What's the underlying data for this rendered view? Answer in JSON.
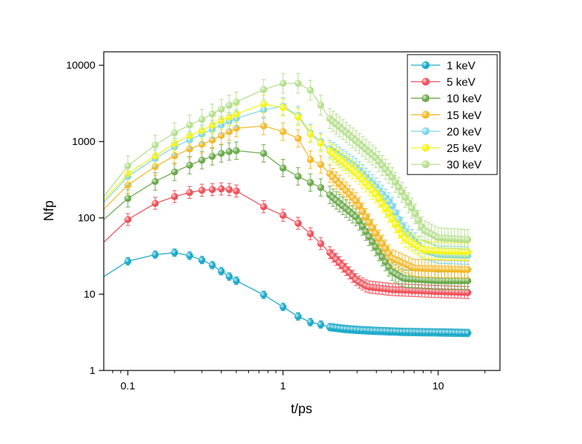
{
  "chart_data": {
    "type": "scatter",
    "title": "",
    "xlabel": "t/ps",
    "ylabel": "Nfp",
    "xscale": "log",
    "yscale": "log",
    "xlim": [
      0.07,
      25
    ],
    "ylim": [
      1,
      15000
    ],
    "x_ticks": [
      {
        "value": 0.1,
        "label": "0.1"
      },
      {
        "value": 1,
        "label": "1"
      },
      {
        "value": 10,
        "label": "10"
      }
    ],
    "y_ticks": [
      {
        "value": 1,
        "label": "1"
      },
      {
        "value": 10,
        "label": "10"
      },
      {
        "value": 100,
        "label": "100"
      },
      {
        "value": 1000,
        "label": "1000"
      },
      {
        "value": 10000,
        "label": "10000"
      }
    ],
    "legend_position": "top-right",
    "series": [
      {
        "name": "1 keV",
        "color": "#19a9c9",
        "line": [
          [
            0.07,
            17
          ],
          [
            0.1,
            27
          ],
          [
            0.15,
            33
          ],
          [
            0.2,
            35
          ],
          [
            0.25,
            32
          ],
          [
            0.3,
            28
          ],
          [
            0.35,
            24
          ],
          [
            0.4,
            20
          ],
          [
            0.45,
            17
          ],
          [
            0.5,
            15
          ],
          [
            0.75,
            9.8
          ],
          [
            1.0,
            6.8
          ],
          [
            1.25,
            5.1
          ],
          [
            1.5,
            4.3
          ],
          [
            1.75,
            4.0
          ],
          [
            2.0,
            3.7
          ],
          [
            2.5,
            3.5
          ],
          [
            3,
            3.4
          ],
          [
            4,
            3.3
          ],
          [
            6,
            3.2
          ],
          [
            10,
            3.15
          ],
          [
            15.5,
            3.1
          ]
        ],
        "points": [
          [
            0.1,
            27
          ],
          [
            0.15,
            33
          ],
          [
            0.2,
            35
          ],
          [
            0.25,
            32
          ],
          [
            0.3,
            28
          ],
          [
            0.35,
            24
          ],
          [
            0.4,
            20
          ],
          [
            0.45,
            17
          ],
          [
            0.5,
            15
          ],
          [
            0.75,
            9.8
          ],
          [
            1.0,
            6.8
          ],
          [
            1.25,
            5.1
          ],
          [
            1.5,
            4.3
          ],
          [
            1.75,
            4.0
          ],
          [
            2.0,
            3.7
          ]
        ],
        "dense_from": 2.0,
        "dense_to": 15.5,
        "rel_err": 0.12
      },
      {
        "name": "5 keV",
        "color": "#f0505a",
        "line": [
          [
            0.07,
            48
          ],
          [
            0.1,
            95
          ],
          [
            0.15,
            155
          ],
          [
            0.2,
            190
          ],
          [
            0.25,
            215
          ],
          [
            0.3,
            230
          ],
          [
            0.35,
            235
          ],
          [
            0.4,
            240
          ],
          [
            0.45,
            235
          ],
          [
            0.5,
            225
          ],
          [
            0.75,
            140
          ],
          [
            1.0,
            108
          ],
          [
            1.25,
            85
          ],
          [
            1.5,
            62
          ],
          [
            1.75,
            46
          ],
          [
            2.0,
            35
          ],
          [
            2.5,
            22
          ],
          [
            3,
            15
          ],
          [
            3.5,
            12.5
          ],
          [
            5,
            11.5
          ],
          [
            10,
            10.8
          ],
          [
            15.5,
            10.5
          ]
        ],
        "points": [
          [
            0.1,
            95
          ],
          [
            0.15,
            155
          ],
          [
            0.2,
            190
          ],
          [
            0.25,
            215
          ],
          [
            0.3,
            230
          ],
          [
            0.35,
            235
          ],
          [
            0.4,
            240
          ],
          [
            0.45,
            235
          ],
          [
            0.5,
            225
          ],
          [
            0.75,
            140
          ],
          [
            1.0,
            108
          ],
          [
            1.25,
            85
          ],
          [
            1.5,
            62
          ],
          [
            1.75,
            46
          ],
          [
            2.0,
            35
          ]
        ],
        "dense_from": 2.0,
        "dense_to": 15.5,
        "rel_err": 0.2
      },
      {
        "name": "10 keV",
        "color": "#6aaa4a",
        "line": [
          [
            0.07,
            95
          ],
          [
            0.1,
            180
          ],
          [
            0.15,
            300
          ],
          [
            0.2,
            400
          ],
          [
            0.25,
            490
          ],
          [
            0.3,
            570
          ],
          [
            0.35,
            640
          ],
          [
            0.4,
            700
          ],
          [
            0.45,
            740
          ],
          [
            0.5,
            760
          ],
          [
            0.75,
            700
          ],
          [
            1.0,
            450
          ],
          [
            1.25,
            350
          ],
          [
            1.5,
            290
          ],
          [
            1.75,
            250
          ],
          [
            2.0,
            200
          ],
          [
            3,
            100
          ],
          [
            4,
            40
          ],
          [
            5,
            20
          ],
          [
            6,
            16
          ],
          [
            10,
            15
          ],
          [
            15.5,
            15
          ]
        ],
        "points": [
          [
            0.1,
            180
          ],
          [
            0.15,
            300
          ],
          [
            0.2,
            400
          ],
          [
            0.25,
            490
          ],
          [
            0.3,
            570
          ],
          [
            0.35,
            640
          ],
          [
            0.4,
            700
          ],
          [
            0.45,
            740
          ],
          [
            0.5,
            760
          ],
          [
            0.75,
            700
          ],
          [
            1.0,
            450
          ],
          [
            1.25,
            350
          ],
          [
            1.5,
            290
          ],
          [
            1.75,
            250
          ],
          [
            2.0,
            200
          ]
        ],
        "dense_from": 2.0,
        "dense_to": 15.5,
        "rel_err": 0.3
      },
      {
        "name": "15 keV",
        "color": "#f2b929",
        "line": [
          [
            0.07,
            130
          ],
          [
            0.1,
            270
          ],
          [
            0.15,
            470
          ],
          [
            0.2,
            650
          ],
          [
            0.25,
            800
          ],
          [
            0.3,
            920
          ],
          [
            0.35,
            1050
          ],
          [
            0.4,
            1200
          ],
          [
            0.45,
            1350
          ],
          [
            0.5,
            1500
          ],
          [
            0.75,
            1600
          ],
          [
            1.0,
            1350
          ],
          [
            1.25,
            1100
          ],
          [
            1.5,
            580
          ],
          [
            1.75,
            500
          ],
          [
            2.0,
            380
          ],
          [
            3,
            160
          ],
          [
            4,
            60
          ],
          [
            5,
            30
          ],
          [
            7,
            22
          ],
          [
            10,
            21.5
          ],
          [
            15.5,
            21
          ]
        ],
        "points": [
          [
            0.1,
            270
          ],
          [
            0.15,
            470
          ],
          [
            0.2,
            650
          ],
          [
            0.25,
            800
          ],
          [
            0.3,
            920
          ],
          [
            0.35,
            1050
          ],
          [
            0.4,
            1200
          ],
          [
            0.45,
            1350
          ],
          [
            0.5,
            1500
          ],
          [
            0.75,
            1600
          ],
          [
            1.0,
            1350
          ],
          [
            1.25,
            1100
          ],
          [
            1.5,
            580
          ],
          [
            1.75,
            500
          ],
          [
            2.0,
            380
          ]
        ],
        "dense_from": 2.0,
        "dense_to": 15.5,
        "rel_err": 0.3
      },
      {
        "name": "20 keV",
        "color": "#7fd7ea",
        "line": [
          [
            0.07,
            160
          ],
          [
            0.1,
            350
          ],
          [
            0.15,
            600
          ],
          [
            0.2,
            850
          ],
          [
            0.25,
            1050
          ],
          [
            0.3,
            1250
          ],
          [
            0.35,
            1450
          ],
          [
            0.4,
            1650
          ],
          [
            0.45,
            1850
          ],
          [
            0.5,
            2000
          ],
          [
            0.75,
            2600
          ],
          [
            1.0,
            2900
          ],
          [
            1.25,
            2200
          ],
          [
            1.5,
            1300
          ],
          [
            1.75,
            1000
          ],
          [
            2.0,
            800
          ],
          [
            3,
            450
          ],
          [
            4,
            250
          ],
          [
            5,
            150
          ],
          [
            6,
            70
          ],
          [
            8,
            38
          ],
          [
            10,
            33
          ],
          [
            15.5,
            32
          ]
        ],
        "points": [
          [
            0.1,
            350
          ],
          [
            0.15,
            600
          ],
          [
            0.2,
            850
          ],
          [
            0.25,
            1050
          ],
          [
            0.3,
            1250
          ],
          [
            0.35,
            1450
          ],
          [
            0.4,
            1650
          ],
          [
            0.45,
            1850
          ],
          [
            0.5,
            2000
          ],
          [
            0.75,
            2600
          ],
          [
            1.0,
            2900
          ],
          [
            1.25,
            2200
          ],
          [
            1.5,
            1300
          ],
          [
            1.75,
            1000
          ],
          [
            2.0,
            800
          ]
        ],
        "dense_from": 2.0,
        "dense_to": 15.5,
        "rel_err": 0.3
      },
      {
        "name": "25 keV",
        "color": "#f5f516",
        "line": [
          [
            0.07,
            170
          ],
          [
            0.1,
            380
          ],
          [
            0.15,
            650
          ],
          [
            0.2,
            950
          ],
          [
            0.25,
            1200
          ],
          [
            0.3,
            1400
          ],
          [
            0.35,
            1650
          ],
          [
            0.4,
            1900
          ],
          [
            0.45,
            2100
          ],
          [
            0.5,
            2300
          ],
          [
            0.75,
            3100
          ],
          [
            1.0,
            2800
          ],
          [
            1.25,
            2100
          ],
          [
            1.5,
            1250
          ],
          [
            1.75,
            950
          ],
          [
            2.0,
            750
          ],
          [
            3,
            380
          ],
          [
            4,
            200
          ],
          [
            5,
            100
          ],
          [
            6,
            55
          ],
          [
            8,
            38
          ],
          [
            10,
            37
          ],
          [
            15.5,
            36
          ]
        ],
        "points": [
          [
            0.1,
            380
          ],
          [
            0.15,
            650
          ],
          [
            0.2,
            950
          ],
          [
            0.25,
            1200
          ],
          [
            0.3,
            1400
          ],
          [
            0.35,
            1650
          ],
          [
            0.4,
            1900
          ],
          [
            0.45,
            2100
          ],
          [
            0.5,
            2300
          ],
          [
            0.75,
            3100
          ],
          [
            1.0,
            2800
          ],
          [
            1.25,
            2100
          ],
          [
            1.5,
            1250
          ],
          [
            1.75,
            950
          ],
          [
            2.0,
            750
          ]
        ],
        "dense_from": 2.0,
        "dense_to": 15.5,
        "rel_err": 0.3
      },
      {
        "name": "30 keV",
        "color": "#b5df8d",
        "line": [
          [
            0.07,
            190
          ],
          [
            0.1,
            480
          ],
          [
            0.15,
            900
          ],
          [
            0.2,
            1300
          ],
          [
            0.25,
            1650
          ],
          [
            0.3,
            1950
          ],
          [
            0.35,
            2300
          ],
          [
            0.4,
            2650
          ],
          [
            0.45,
            3000
          ],
          [
            0.5,
            3300
          ],
          [
            0.75,
            4800
          ],
          [
            1.0,
            5800
          ],
          [
            1.25,
            5800
          ],
          [
            1.5,
            4700
          ],
          [
            1.75,
            3000
          ],
          [
            2.0,
            2000
          ],
          [
            3,
            1000
          ],
          [
            4,
            600
          ],
          [
            5,
            350
          ],
          [
            6,
            200
          ],
          [
            7,
            120
          ],
          [
            8,
            70
          ],
          [
            10,
            55
          ],
          [
            15.5,
            52
          ]
        ],
        "points": [
          [
            0.1,
            480
          ],
          [
            0.15,
            900
          ],
          [
            0.2,
            1300
          ],
          [
            0.25,
            1650
          ],
          [
            0.3,
            1950
          ],
          [
            0.35,
            2300
          ],
          [
            0.4,
            2650
          ],
          [
            0.45,
            3000
          ],
          [
            0.5,
            3300
          ],
          [
            0.75,
            4800
          ],
          [
            1.0,
            5800
          ],
          [
            1.25,
            5800
          ],
          [
            1.5,
            4700
          ],
          [
            1.75,
            3000
          ],
          [
            2.0,
            2000
          ]
        ],
        "dense_from": 2.0,
        "dense_to": 15.5,
        "rel_err": 0.35
      }
    ]
  }
}
